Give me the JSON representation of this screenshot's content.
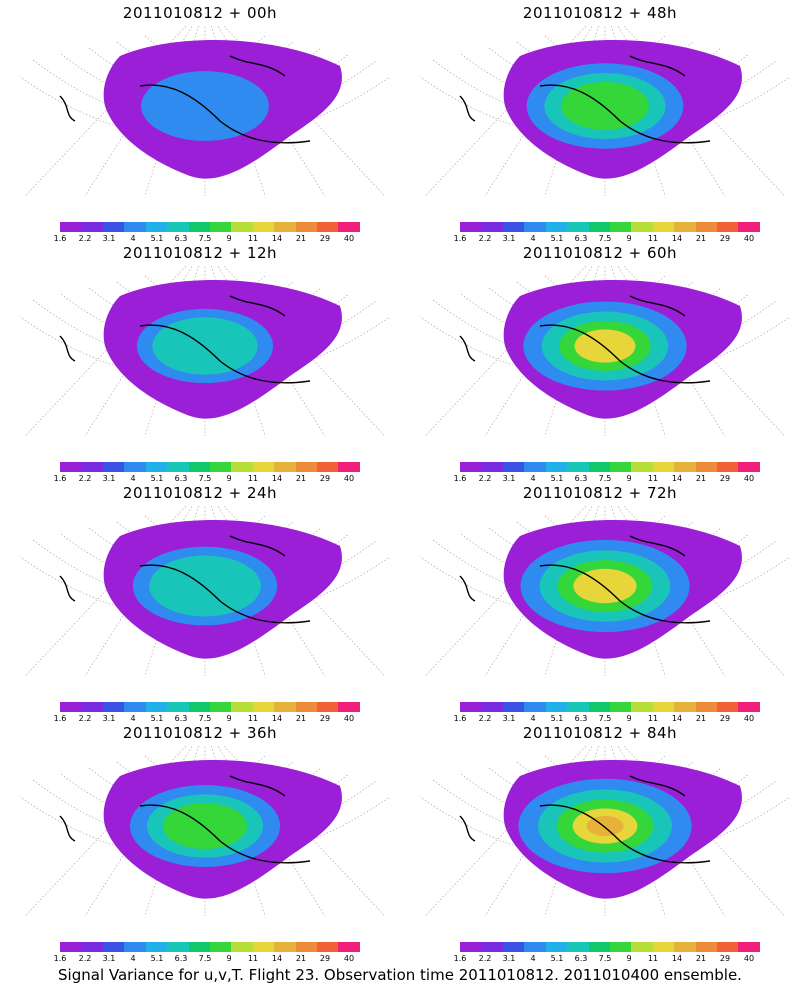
{
  "panels": [
    {
      "title": "2011010812 + 00h",
      "intensity": 0.35
    },
    {
      "title": "2011010812 + 48h",
      "intensity": 0.7
    },
    {
      "title": "2011010812 + 12h",
      "intensity": 0.45
    },
    {
      "title": "2011010812 + 60h",
      "intensity": 0.78
    },
    {
      "title": "2011010812 + 24h",
      "intensity": 0.55
    },
    {
      "title": "2011010812 + 72h",
      "intensity": 0.85
    },
    {
      "title": "2011010812 + 36h",
      "intensity": 0.62
    },
    {
      "title": "2011010812 + 84h",
      "intensity": 0.9
    }
  ],
  "colorbar": {
    "labels": [
      "1.6",
      "2.2",
      "3.1",
      "4",
      "5.1",
      "6.3",
      "7.5",
      "9",
      "11",
      "14",
      "21",
      "29",
      "40"
    ],
    "colors": [
      "#9b1fd6",
      "#7a2ae0",
      "#3a53e6",
      "#2f8bf0",
      "#21b0e8",
      "#19c5b8",
      "#10c86a",
      "#35d63a",
      "#b8de3a",
      "#e6d63a",
      "#e8b23a",
      "#ee8a3a",
      "#f2603a",
      "#ee1f7a"
    ]
  },
  "footer": "Signal Variance for u,v,T. Flight 23. Observation time 2011010812. 2011010400 ensemble."
}
